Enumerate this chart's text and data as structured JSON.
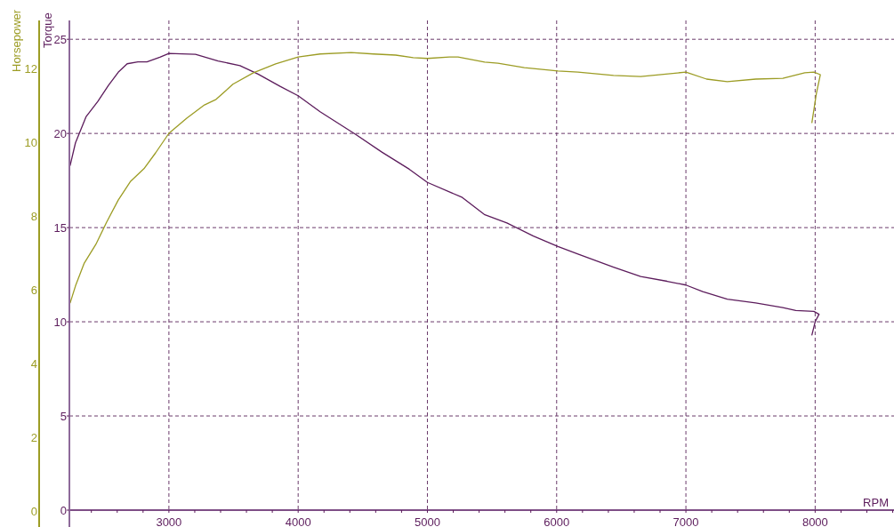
{
  "chart_data": {
    "type": "line",
    "xlabel": "RPM",
    "ylabel": "Torque",
    "y2label": "Horsepower",
    "xlim": [
      2230,
      8610
    ],
    "ylim": [
      0,
      26
    ],
    "y2lim": [
      0,
      13.3
    ],
    "xticks": [
      {
        "value": 2400,
        "label": null
      },
      {
        "value": 2600,
        "label": null
      },
      {
        "value": 2800,
        "label": null
      },
      3000,
      {
        "value": 3200,
        "label": null
      },
      {
        "value": 3400,
        "label": null
      },
      {
        "value": 3600,
        "label": null
      },
      {
        "value": 3800,
        "label": null
      },
      4000,
      {
        "value": 4200,
        "label": null
      },
      {
        "value": 4400,
        "label": null
      },
      {
        "value": 4600,
        "label": null
      },
      {
        "value": 4800,
        "label": null
      },
      5000,
      {
        "value": 5200,
        "label": null
      },
      {
        "value": 5400,
        "label": null
      },
      {
        "value": 5600,
        "label": null
      },
      {
        "value": 5800,
        "label": null
      },
      6000,
      {
        "value": 6200,
        "label": null
      },
      {
        "value": 6400,
        "label": null
      },
      {
        "value": 6600,
        "label": null
      },
      {
        "value": 6800,
        "label": null
      },
      7000,
      {
        "value": 7200,
        "label": null
      },
      {
        "value": 7400,
        "label": null
      },
      {
        "value": 7600,
        "label": null
      },
      {
        "value": 7800,
        "label": null
      },
      8000,
      {
        "value": 8200,
        "label": null
      },
      {
        "value": 8400,
        "label": null
      },
      {
        "value": 8600,
        "label": null
      }
    ],
    "yticks": [
      0,
      5,
      10,
      15,
      20,
      25
    ],
    "y2ticks": [
      0,
      2,
      4,
      6,
      8,
      10,
      12
    ],
    "grid": true,
    "line_style": "solid",
    "marker": "none",
    "series": [
      {
        "color": "#5c1c5c",
        "x": [
          2236,
          2277,
          2360,
          2450,
          2532,
          2608,
          2677,
          2760,
          2830,
          2930,
          3000,
          3206,
          3380,
          3550,
          3690,
          3860,
          4000,
          4170,
          4445,
          4650,
          4860,
          5000,
          5270,
          5440,
          5615,
          5820,
          6010,
          6165,
          6440,
          6650,
          6855,
          7000,
          7130,
          7320,
          7540,
          7750,
          7850,
          7990,
          8030,
          8000,
          7975
        ],
        "values": [
          18.3,
          19.5,
          20.9,
          21.7,
          22.55,
          23.25,
          23.7,
          23.8,
          23.8,
          24.05,
          24.25,
          24.2,
          23.85,
          23.6,
          23.15,
          22.5,
          22.0,
          21.15,
          19.95,
          19.0,
          18.1,
          17.4,
          16.6,
          15.7,
          15.25,
          14.55,
          14.0,
          13.6,
          12.9,
          12.4,
          12.15,
          11.95,
          11.6,
          11.2,
          11.0,
          10.75,
          10.6,
          10.55,
          10.4,
          10.0,
          9.3
        ]
      },
      {
        "color": "#9c9c24",
        "axis": "y2",
        "x": [
          2236,
          2277,
          2345,
          2435,
          2518,
          2608,
          2704,
          2807,
          2897,
          3000,
          3138,
          3275,
          3365,
          3495,
          3654,
          3826,
          4000,
          4170,
          4410,
          4583,
          4755,
          4890,
          5000,
          5170,
          5237,
          5443,
          5546,
          5750,
          6010,
          6165,
          6440,
          6650,
          7000,
          7160,
          7320,
          7540,
          7750,
          7920,
          7990,
          8040,
          8010,
          7975
        ],
        "values": [
          5.64,
          6.1,
          6.72,
          7.23,
          7.83,
          8.43,
          8.94,
          9.28,
          9.71,
          10.24,
          10.65,
          11.01,
          11.16,
          11.57,
          11.88,
          12.12,
          12.31,
          12.39,
          12.43,
          12.39,
          12.36,
          12.29,
          12.27,
          12.31,
          12.31,
          12.17,
          12.14,
          12.02,
          11.93,
          11.9,
          11.81,
          11.78,
          11.9,
          11.71,
          11.64,
          11.71,
          11.73,
          11.88,
          11.9,
          11.83,
          11.33,
          10.53
        ]
      }
    ]
  }
}
